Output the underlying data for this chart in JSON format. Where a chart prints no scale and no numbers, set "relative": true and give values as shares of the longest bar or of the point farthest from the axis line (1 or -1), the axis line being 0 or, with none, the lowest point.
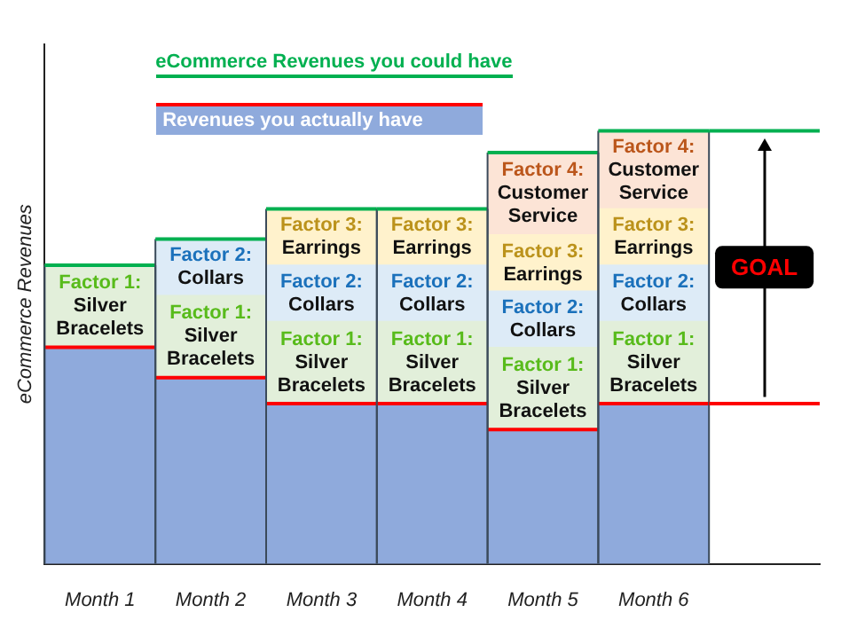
{
  "chart_data": {
    "type": "bar",
    "stacked": true,
    "relative": true,
    "ylabel": "eCommerce Revenues",
    "legend": "top",
    "grid": false,
    "categories": [
      "Month 1",
      "Month 2",
      "Month 3",
      "Month 4",
      "Month 5",
      "Month 6",
      null
    ],
    "series": [
      {
        "name": "Revenues you actually have",
        "color": "#8faadc",
        "values": [
          0.5,
          0.43,
          0.37,
          0.37,
          0.31,
          0.37,
          null
        ]
      },
      {
        "name": "Factor 1: Silver Bracelets",
        "color": "#e2efda",
        "values": [
          0.19,
          0.19,
          0.19,
          0.19,
          0.19,
          0.19,
          null
        ]
      },
      {
        "name": "Factor 2: Collars",
        "color": "#ddebf7",
        "values": [
          null,
          0.13,
          0.13,
          0.13,
          0.13,
          0.13,
          null
        ]
      },
      {
        "name": "Factor 3: Earrings",
        "color": "#fff2cc",
        "values": [
          null,
          null,
          0.13,
          0.13,
          0.13,
          0.13,
          null
        ]
      },
      {
        "name": "Factor 4: Customer Service",
        "color": "#fce4d6",
        "values": [
          null,
          null,
          null,
          null,
          0.19,
          0.18,
          null
        ]
      }
    ],
    "ref_lines": [
      {
        "axis": "y",
        "value": 0.37,
        "color": "#ff0000"
      },
      {
        "axis": "y",
        "value": 1,
        "color": "#00b050"
      }
    ],
    "annotations": [
      "eCommerce Revenues you could have",
      "GOAL"
    ]
  }
}
